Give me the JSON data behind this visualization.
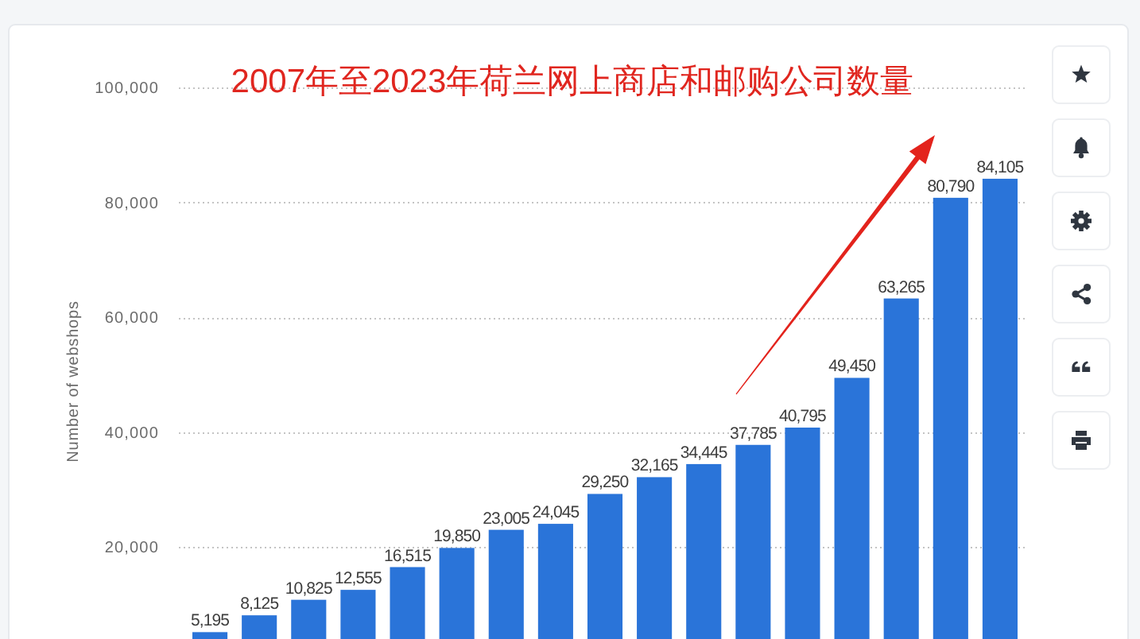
{
  "chart_data": {
    "type": "bar",
    "title": "2007年至2023年荷兰网上商店和邮购公司数量",
    "ylabel": "Number of webshops",
    "categories": [
      null,
      null,
      null,
      null,
      null,
      null,
      null,
      null,
      null,
      null,
      null,
      null,
      null,
      null,
      null,
      null,
      null
    ],
    "values": [
      5195,
      8125,
      10825,
      12555,
      16515,
      19850,
      23005,
      24045,
      29250,
      32165,
      34445,
      37785,
      40795,
      49450,
      63265,
      80790,
      84105
    ],
    "value_labels": [
      "5,195",
      "8,125",
      "10,825",
      "12,555",
      "16,515",
      "19,850",
      "23,005",
      "24,045",
      "29,250",
      "32,165",
      "34,445",
      "37,785",
      "40,795",
      "49,450",
      "63,265",
      "80,790",
      "84,105"
    ],
    "color": "#2a74d9",
    "ylim": [
      4000,
      100000
    ],
    "yticks": [
      {
        "value": 20000,
        "label": "20,000"
      },
      {
        "value": 40000,
        "label": "40,000"
      },
      {
        "value": 60000,
        "label": "60,000"
      },
      {
        "value": 80000,
        "label": "80,000"
      },
      {
        "value": 100000,
        "label": "100,000"
      }
    ],
    "grid": "y"
  }
}
